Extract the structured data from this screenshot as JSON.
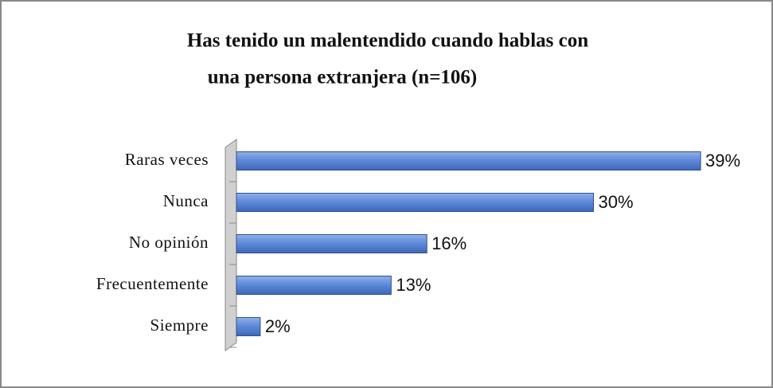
{
  "chart_data": {
    "type": "bar",
    "orientation": "horizontal",
    "title": [
      "Has tenido un malentendido cuando hablas con",
      "una persona extranjera (n=106)"
    ],
    "categories": [
      "Raras veces",
      "Nunca",
      "No opinión",
      "Frecuentemente",
      "Siempre"
    ],
    "values": [
      39,
      30,
      16,
      13,
      2
    ],
    "value_labels": [
      "39%",
      "30%",
      "16%",
      "13%",
      "2%"
    ],
    "color": "#5b87d6"
  }
}
